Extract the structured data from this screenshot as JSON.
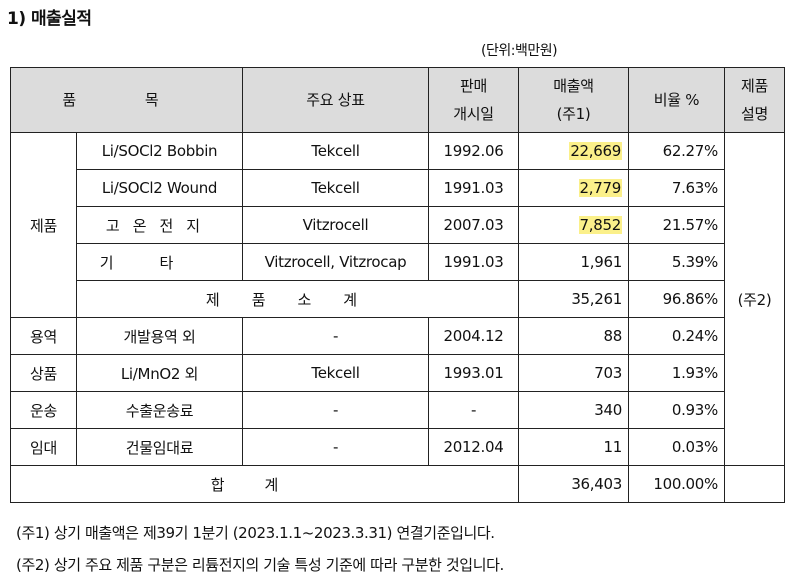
{
  "title": "1) 매출실적",
  "unit": "(단위:백만원)",
  "header": {
    "item": "품   목",
    "brand": "주요 상표",
    "launch": [
      "판매",
      "개시일"
    ],
    "sales": [
      "매출액",
      "(주1)"
    ],
    "ratio": "비율 %",
    "desc": [
      "제품",
      "설명"
    ]
  },
  "groups": {
    "product": "제품",
    "service": "용역",
    "goods": "상품",
    "transport": "운송",
    "rent": "임대"
  },
  "rows": [
    {
      "item": "Li/SOCl2 Bobbin",
      "brand": "Tekcell",
      "launch": "1992.06",
      "sales": "22,669",
      "ratio": "62.27%"
    },
    {
      "item": "Li/SOCl2 Wound",
      "brand": "Tekcell",
      "launch": "1991.03",
      "sales": "2,779",
      "ratio": "7.63%"
    },
    {
      "item": "고온전지",
      "brand": "Vitzrocell",
      "launch": "2007.03",
      "sales": "7,852",
      "ratio": "21.57%"
    },
    {
      "item": "기타",
      "brand": "Vitzrocell, Vitzrocap",
      "launch": "1991.03",
      "sales": "1,961",
      "ratio": "5.39%"
    }
  ],
  "subtotal": {
    "label": "제품소계",
    "sales": "35,261",
    "ratio": "96.86%"
  },
  "desc_note": "(주2)",
  "service_row": {
    "item": "개발용역 외",
    "brand": "-",
    "launch": "2004.12",
    "sales": "88",
    "ratio": "0.24%"
  },
  "goods_row": {
    "item": "Li/MnO2 외",
    "brand": "Tekcell",
    "launch": "1993.01",
    "sales": "703",
    "ratio": "1.93%"
  },
  "transport_row": {
    "item": "수출운송료",
    "brand": "-",
    "launch": "-",
    "sales": "340",
    "ratio": "0.93%"
  },
  "rent_row": {
    "item": "건물임대료",
    "brand": "-",
    "launch": "2012.04",
    "sales": "11",
    "ratio": "0.03%"
  },
  "total": {
    "label": "합계",
    "sales": "36,403",
    "ratio": "100.00%"
  },
  "notes": [
    "(주1) 상기 매출액은 제39기 1분기 (2023.1.1~2023.3.31) 연결기준입니다.",
    "(주2) 상기 주요 제품 구분은 리튬전지의 기술 특성 기준에 따라 구분한 것입니다."
  ],
  "colors": {
    "header_bg": "#dcdcdc",
    "highlight": "#fbf08a",
    "border": "#222222"
  }
}
